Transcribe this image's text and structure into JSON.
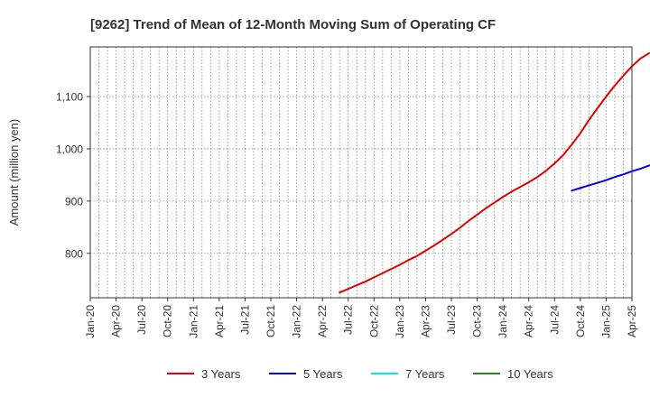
{
  "chart_data": {
    "type": "line",
    "title": "[9262]  Trend of Mean of 12-Month Moving Sum of Operating CF",
    "ylabel": "Amount (million yen)",
    "xlabel": "",
    "x_ticks": [
      "Jan-20",
      "Apr-20",
      "Jul-20",
      "Oct-20",
      "Jan-21",
      "Apr-21",
      "Jul-21",
      "Oct-21",
      "Jan-22",
      "Apr-22",
      "Jul-22",
      "Oct-22",
      "Jan-23",
      "Apr-23",
      "Jul-23",
      "Oct-23",
      "Jan-24",
      "Apr-24",
      "Jul-24",
      "Oct-24",
      "Jan-25",
      "Apr-25"
    ],
    "y_ticks": [
      800,
      900,
      1000,
      1100
    ],
    "y_tick_labels": [
      "800",
      "900",
      "1,000",
      "1,100"
    ],
    "ylim": [
      715,
      1195
    ],
    "xlim": [
      "2020-01",
      "2025-04"
    ],
    "grid": true,
    "legend_position": "bottom",
    "legend": [
      "3 Years",
      "5 Years",
      "7 Years",
      "10 Years"
    ],
    "series": [
      {
        "name": "3 Years",
        "color": "#e00000",
        "points": [
          [
            "2022-06",
            725
          ],
          [
            "2022-07",
            732
          ],
          [
            "2022-08",
            739
          ],
          [
            "2022-09",
            746
          ],
          [
            "2022-10",
            754
          ],
          [
            "2022-11",
            762
          ],
          [
            "2022-12",
            770
          ],
          [
            "2023-01",
            778
          ],
          [
            "2023-02",
            787
          ],
          [
            "2023-03",
            795
          ],
          [
            "2023-04",
            805
          ],
          [
            "2023-05",
            815
          ],
          [
            "2023-06",
            826
          ],
          [
            "2023-07",
            837
          ],
          [
            "2023-08",
            849
          ],
          [
            "2023-09",
            862
          ],
          [
            "2023-10",
            874
          ],
          [
            "2023-11",
            886
          ],
          [
            "2023-12",
            897
          ],
          [
            "2024-01",
            908
          ],
          [
            "2024-02",
            918
          ],
          [
            "2024-03",
            927
          ],
          [
            "2024-04",
            936
          ],
          [
            "2024-05",
            946
          ],
          [
            "2024-06",
            958
          ],
          [
            "2024-07",
            972
          ],
          [
            "2024-08",
            988
          ],
          [
            "2024-09",
            1008
          ],
          [
            "2024-10",
            1030
          ],
          [
            "2024-11",
            1055
          ],
          [
            "2024-12",
            1078
          ],
          [
            "2025-01",
            1100
          ],
          [
            "2025-02",
            1121
          ],
          [
            "2025-03",
            1140
          ],
          [
            "2025-04",
            1158
          ],
          [
            "2025-05",
            1173
          ],
          [
            "2025-06",
            1183
          ]
        ]
      },
      {
        "name": "5 Years",
        "color": "#0000e0",
        "points": [
          [
            "2024-09",
            920
          ],
          [
            "2024-10",
            925
          ],
          [
            "2024-11",
            930
          ],
          [
            "2024-12",
            935
          ],
          [
            "2025-01",
            940
          ],
          [
            "2025-02",
            946
          ],
          [
            "2025-03",
            951
          ],
          [
            "2025-04",
            957
          ],
          [
            "2025-05",
            962
          ],
          [
            "2025-06",
            968
          ],
          [
            "2025-07",
            973
          ]
        ]
      },
      {
        "name": "7 Years",
        "color": "#00e5ee",
        "points": []
      },
      {
        "name": "10 Years",
        "color": "#228b22",
        "points": []
      }
    ]
  }
}
